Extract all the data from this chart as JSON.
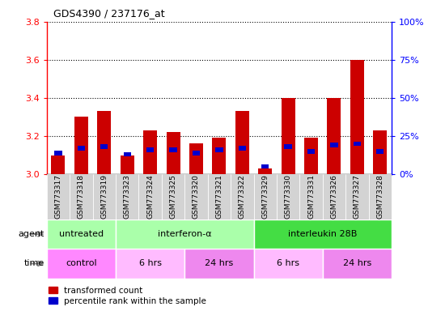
{
  "title": "GDS4390 / 237176_at",
  "samples": [
    "GSM773317",
    "GSM773318",
    "GSM773319",
    "GSM773323",
    "GSM773324",
    "GSM773325",
    "GSM773320",
    "GSM773321",
    "GSM773322",
    "GSM773329",
    "GSM773330",
    "GSM773331",
    "GSM773326",
    "GSM773327",
    "GSM773328"
  ],
  "red_values": [
    3.1,
    3.3,
    3.33,
    3.1,
    3.23,
    3.22,
    3.16,
    3.19,
    3.33,
    3.03,
    3.4,
    3.19,
    3.4,
    3.6,
    3.23
  ],
  "blue_pct": [
    14,
    17,
    18,
    13,
    16,
    16,
    14,
    16,
    17,
    5,
    18,
    15,
    19,
    20,
    15
  ],
  "ymin": 3.0,
  "ymax": 3.8,
  "yticks": [
    3.0,
    3.2,
    3.4,
    3.6,
    3.8
  ],
  "right_yticks": [
    0,
    25,
    50,
    75,
    100
  ],
  "agent_groups": [
    {
      "label": "untreated",
      "start": 0,
      "end": 3,
      "color": "#aaffaa"
    },
    {
      "label": "interferon-α",
      "start": 3,
      "end": 9,
      "color": "#aaffaa"
    },
    {
      "label": "interleukin 28B",
      "start": 9,
      "end": 15,
      "color": "#44dd44"
    }
  ],
  "time_groups": [
    {
      "label": "control",
      "start": 0,
      "end": 3,
      "color": "#ff88ff"
    },
    {
      "label": "6 hrs",
      "start": 3,
      "end": 6,
      "color": "#ffbbff"
    },
    {
      "label": "24 hrs",
      "start": 6,
      "end": 9,
      "color": "#ee88ee"
    },
    {
      "label": "6 hrs",
      "start": 9,
      "end": 12,
      "color": "#ffbbff"
    },
    {
      "label": "24 hrs",
      "start": 12,
      "end": 15,
      "color": "#ee88ee"
    }
  ],
  "bar_color": "#cc0000",
  "blue_color": "#0000cc",
  "bg_chart": "#ffffff",
  "bg_labels": "#d0d0d0",
  "grid_color": "#000000"
}
